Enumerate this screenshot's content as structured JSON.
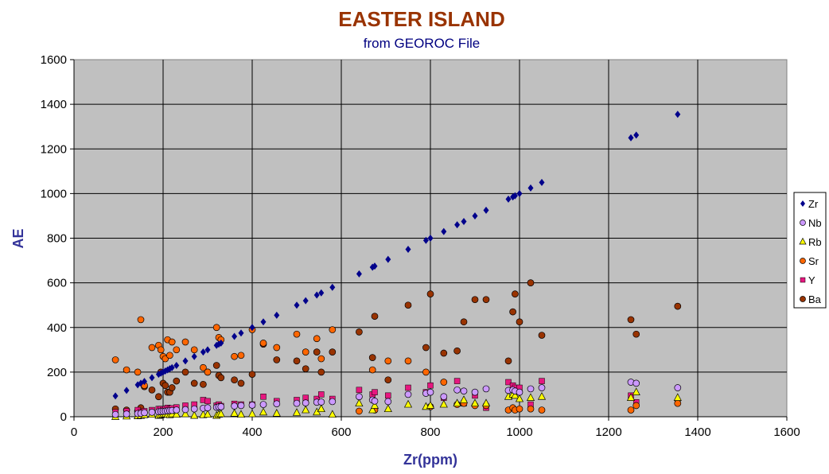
{
  "chart_data": {
    "type": "scatter",
    "title": "EASTER ISLAND",
    "subtitle": "from GEOROC File",
    "xlabel": "Zr(ppm)",
    "ylabel": "AE",
    "xlim": [
      0,
      1600
    ],
    "ylim": [
      0,
      1600
    ],
    "xticks": [
      0,
      200,
      400,
      600,
      800,
      1000,
      1200,
      1400,
      1600
    ],
    "yticks": [
      0,
      200,
      400,
      600,
      800,
      1000,
      1200,
      1400,
      1600
    ],
    "grid": true,
    "plot_background": "#c0c0c0",
    "legend_position": "right",
    "x": [
      93,
      118,
      143,
      150,
      158,
      175,
      190,
      195,
      200,
      205,
      210,
      215,
      220,
      230,
      250,
      270,
      290,
      300,
      320,
      325,
      330,
      360,
      375,
      400,
      425,
      455,
      500,
      520,
      545,
      555,
      580,
      640,
      670,
      675,
      705,
      750,
      790,
      800,
      830,
      860,
      875,
      900,
      925,
      975,
      985,
      990,
      1000,
      1025,
      1050,
      1250,
      1262,
      1355
    ],
    "series": [
      {
        "name": "Zr",
        "marker": "diamond",
        "color": "#00008b",
        "values": [
          93,
          118,
          143,
          150,
          158,
          175,
          190,
          195,
          200,
          205,
          210,
          215,
          220,
          230,
          250,
          270,
          290,
          300,
          320,
          325,
          330,
          360,
          375,
          400,
          425,
          455,
          500,
          520,
          545,
          555,
          580,
          640,
          670,
          675,
          705,
          750,
          790,
          800,
          830,
          860,
          875,
          900,
          925,
          975,
          985,
          990,
          1000,
          1025,
          1050,
          1250,
          1262,
          1355
        ]
      },
      {
        "name": "Nb",
        "marker": "circle",
        "color": "#cc99ff",
        "values": [
          10,
          12,
          14,
          15,
          18,
          20,
          22,
          23,
          24,
          25,
          26,
          27,
          28,
          30,
          32,
          35,
          38,
          40,
          42,
          44,
          45,
          48,
          50,
          52,
          55,
          58,
          60,
          62,
          65,
          66,
          68,
          90,
          75,
          70,
          68,
          100,
          105,
          110,
          90,
          120,
          115,
          110,
          125,
          118,
          120,
          115,
          110,
          125,
          130,
          155,
          150,
          130
        ]
      },
      {
        "name": "Rb",
        "marker": "triangle",
        "color": "#ffff00",
        "values": [
          0,
          2,
          3,
          5,
          8,
          10,
          5,
          8,
          10,
          12,
          10,
          8,
          12,
          10,
          12,
          5,
          8,
          10,
          5,
          10,
          12,
          15,
          10,
          12,
          20,
          15,
          18,
          30,
          20,
          35,
          10,
          60,
          30,
          50,
          35,
          55,
          45,
          50,
          55,
          60,
          75,
          60,
          60,
          90,
          100,
          95,
          80,
          85,
          90,
          85,
          110,
          85
        ]
      },
      {
        "name": "Sr",
        "marker": "circle",
        "color": "#ff6600",
        "values": [
          255,
          210,
          200,
          435,
          140,
          310,
          320,
          300,
          270,
          260,
          345,
          275,
          335,
          300,
          335,
          300,
          220,
          200,
          400,
          355,
          345,
          270,
          275,
          390,
          330,
          310,
          370,
          290,
          350,
          260,
          390,
          25,
          210,
          30,
          250,
          250,
          200,
          45,
          155,
          55,
          60,
          50,
          50,
          30,
          40,
          30,
          35,
          35,
          30,
          30,
          50,
          60
        ]
      },
      {
        "name": "Y",
        "marker": "square",
        "color": "#e6177f",
        "values": [
          20,
          25,
          30,
          20,
          25,
          30,
          35,
          35,
          30,
          35,
          40,
          35,
          38,
          42,
          50,
          55,
          75,
          70,
          50,
          55,
          48,
          58,
          55,
          55,
          90,
          70,
          75,
          85,
          80,
          100,
          80,
          120,
          100,
          110,
          95,
          130,
          110,
          140,
          85,
          160,
          60,
          95,
          40,
          155,
          140,
          130,
          130,
          55,
          160,
          95,
          65,
          65
        ]
      },
      {
        "name": "Ba",
        "marker": "circle",
        "color": "#993300",
        "values": [
          35,
          30,
          25,
          40,
          135,
          120,
          90,
          200,
          150,
          140,
          110,
          110,
          130,
          160,
          200,
          150,
          145,
          200,
          230,
          185,
          175,
          165,
          150,
          190,
          325,
          255,
          250,
          215,
          290,
          200,
          290,
          380,
          265,
          450,
          165,
          500,
          310,
          550,
          285,
          295,
          425,
          525,
          525,
          250,
          470,
          550,
          425,
          600,
          365,
          435,
          370,
          495
        ]
      }
    ]
  }
}
